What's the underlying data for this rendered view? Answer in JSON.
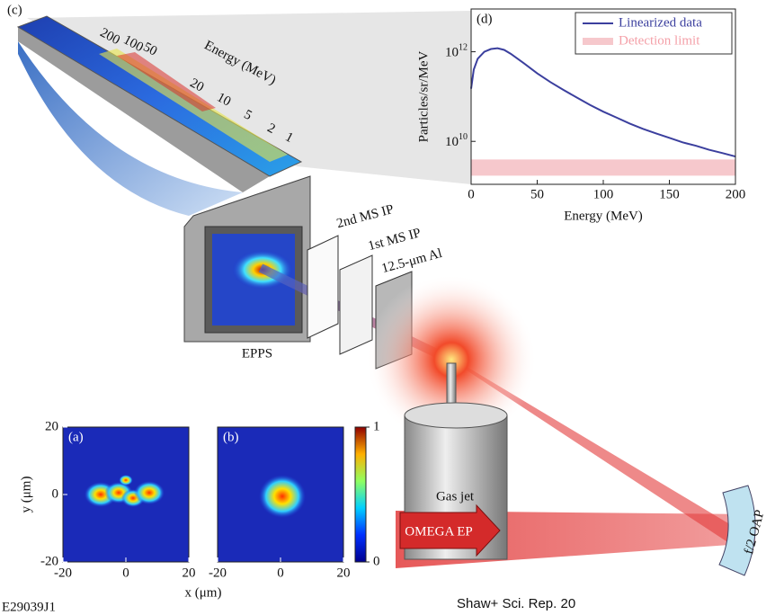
{
  "figure_id": "E29039J1",
  "citation": "Shaw+ Sci. Rep. 20",
  "diagram": {
    "panel_label": "(c)",
    "energy_axis_title": "Energy (MeV)",
    "energy_labels": [
      200,
      100,
      50,
      20,
      10,
      5,
      2,
      1
    ],
    "labels": {
      "ip2": "2nd MS IP",
      "ip1": "1st MS IP",
      "filter": "12.5-μm Al",
      "detector": "EPPS",
      "gas_jet": "Gas jet",
      "laser": "OMEGA EP",
      "mirror": "f/2 OAP"
    }
  },
  "chart_data": [
    {
      "type": "line",
      "panel_label": "(d)",
      "xlabel": "Energy (MeV)",
      "ylabel": "Particles/sr/MeV",
      "log_y": true,
      "legend": "upper right",
      "x": [
        0,
        2,
        5,
        10,
        15,
        20,
        25,
        30,
        40,
        50,
        60,
        70,
        80,
        90,
        100,
        110,
        120,
        130,
        140,
        150,
        160,
        170,
        180,
        190,
        200
      ],
      "series": [
        {
          "name": "Linearized data",
          "color": "#3b3f9e",
          "values": [
            150000000000.0,
            400000000000.0,
            700000000000.0,
            1000000000000.0,
            1150000000000.0,
            1200000000000.0,
            1100000000000.0,
            900000000000.0,
            550000000000.0,
            330000000000.0,
            210000000000.0,
            140000000000.0,
            95000000000.0,
            65000000000.0,
            46000000000.0,
            34000000000.0,
            25000000000.0,
            19000000000.0,
            15000000000.0,
            12000000000.0,
            9500000000.0,
            8000000000.0,
            6500000000.0,
            5500000000.0,
            4600000000.0
          ]
        },
        {
          "name": "Detection limit",
          "color": "#f6c8cc",
          "values": [
            2600000000.0,
            2600000000.0,
            2600000000.0,
            2600000000.0,
            2600000000.0,
            2600000000.0,
            2600000000.0,
            2600000000.0,
            2600000000.0,
            2600000000.0,
            2600000000.0,
            2600000000.0,
            2600000000.0,
            2600000000.0,
            2600000000.0,
            2600000000.0,
            2600000000.0,
            2600000000.0,
            2600000000.0,
            2600000000.0,
            2600000000.0,
            2600000000.0,
            2600000000.0,
            2600000000.0,
            2600000000.0
          ]
        }
      ],
      "xlim": [
        0,
        200
      ],
      "xticks": [
        0,
        50,
        100,
        150,
        200
      ],
      "ylim": [
        1100000000.0,
        9000000000000.0
      ],
      "yticks": [
        {
          "value": 10000000000.0,
          "label": "10",
          "exponent": "10"
        },
        {
          "value": 1000000000000.0,
          "label": "10",
          "exponent": "12"
        }
      ]
    },
    {
      "type": "heatmap",
      "panel_label": "(a)",
      "ylabel": "y (μm)",
      "xlim": [
        -20,
        20
      ],
      "ylim": [
        -20,
        20
      ],
      "xticks": [
        -20,
        0,
        20
      ],
      "yticks": [
        -20,
        0,
        20
      ]
    },
    {
      "type": "heatmap",
      "panel_label": "(b)",
      "xlabel": "x (μm)",
      "xlim": [
        -20,
        20
      ],
      "ylim": [
        -20,
        20
      ],
      "xticks": [
        -20,
        0,
        20
      ],
      "clim": [
        0,
        1
      ],
      "colorbar_ticks": [
        0,
        1
      ]
    }
  ]
}
